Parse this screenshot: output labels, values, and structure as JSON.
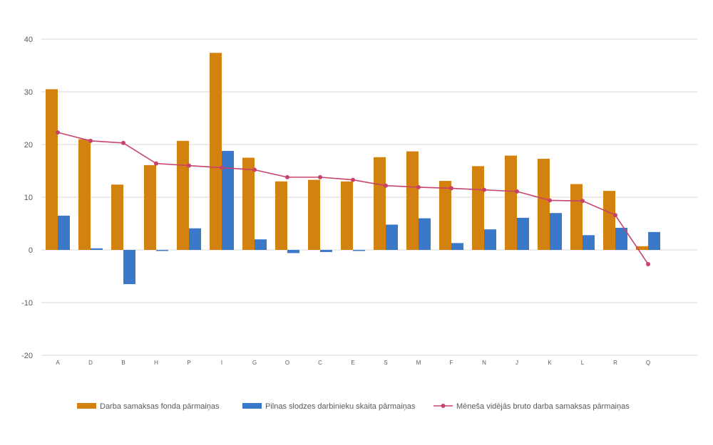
{
  "chart_data": {
    "type": "bar",
    "categories": [
      "A",
      "D",
      "B",
      "H",
      "P",
      "I",
      "G",
      "O",
      "C",
      "E",
      "S",
      "M",
      "F",
      "N",
      "J",
      "K",
      "L",
      "R",
      "Q"
    ],
    "series": [
      {
        "name": "Darba samaksas fonda pārmaiņas",
        "kind": "bar",
        "color": "#d4820f",
        "values": [
          30.5,
          21.0,
          12.4,
          16.1,
          20.7,
          37.4,
          17.5,
          13.0,
          13.3,
          13.0,
          17.6,
          18.7,
          13.1,
          15.9,
          17.9,
          17.3,
          12.5,
          11.2,
          0.7
        ]
      },
      {
        "name": "Pilnas slodzes darbinieku skaita pārmaiņas",
        "kind": "bar",
        "color": "#3b78c9",
        "values": [
          6.5,
          0.3,
          -6.5,
          -0.2,
          4.1,
          18.8,
          2.0,
          -0.6,
          -0.4,
          -0.2,
          4.8,
          6.0,
          1.3,
          3.9,
          6.1,
          7.0,
          2.8,
          4.2,
          3.4
        ]
      },
      {
        "name": "Mēneša vidējās bruto darba samaksas pārmaiņas",
        "kind": "line",
        "color": "#c8436b",
        "values": [
          22.3,
          20.7,
          20.3,
          16.4,
          16.0,
          15.6,
          15.2,
          13.8,
          13.8,
          13.3,
          12.2,
          11.9,
          11.7,
          11.4,
          11.1,
          9.4,
          9.3,
          6.6,
          -2.7
        ]
      }
    ],
    "ylim": [
      -20,
      40
    ],
    "yticks": [
      -20,
      -10,
      0,
      10,
      20,
      30,
      40
    ],
    "ytick_labels": [
      "-20",
      "-10",
      "0",
      "10",
      "20",
      "30",
      "40"
    ],
    "grid": true,
    "legend_position": "bottom"
  }
}
